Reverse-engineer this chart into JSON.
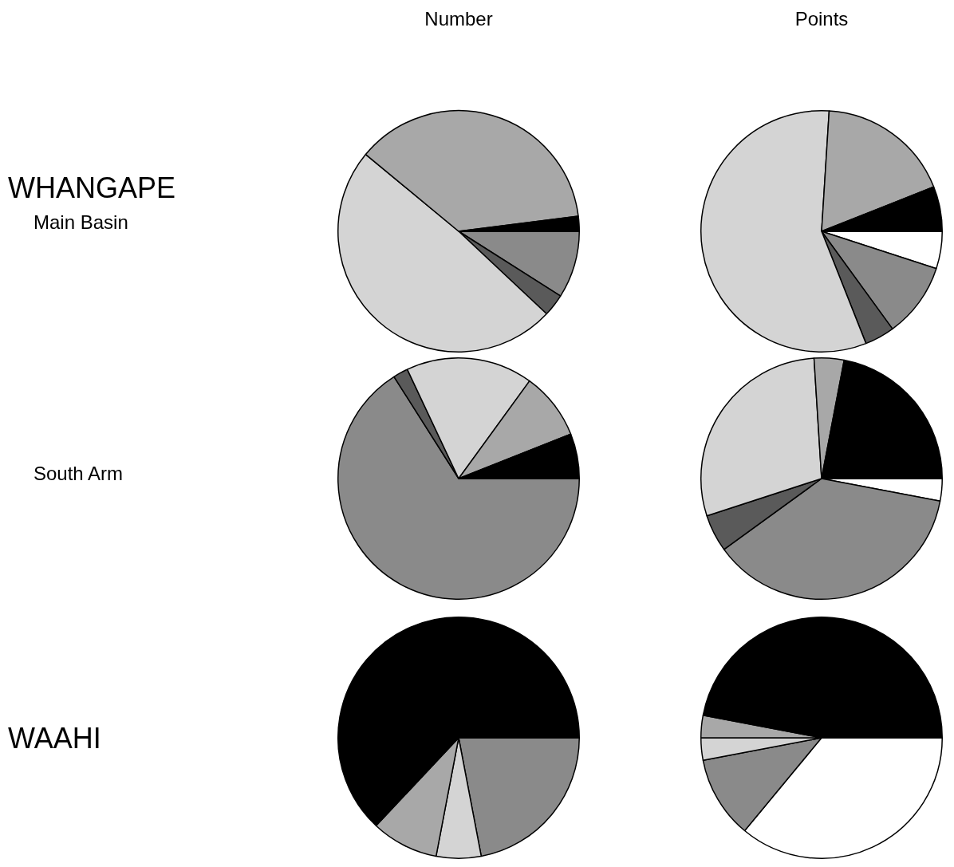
{
  "chart_data": [
    {
      "type": "pie",
      "title": "Number",
      "annotations": [
        "WHANGAPE",
        "Main Basin"
      ],
      "categories": [
        null,
        null,
        null,
        null,
        null
      ],
      "values": [
        9,
        3,
        49,
        37,
        2
      ],
      "colors": [
        "#8a8a8a",
        "#5a5a5a",
        "#d4d4d4",
        "#a8a8a8",
        "#000000"
      ]
    },
    {
      "type": "pie",
      "title": "Points",
      "categories": [
        null,
        null,
        null,
        null,
        null,
        null
      ],
      "values": [
        5,
        10,
        4,
        57,
        18,
        6
      ],
      "colors": [
        "#ffffff",
        "#8a8a8a",
        "#5a5a5a",
        "#d4d4d4",
        "#a8a8a8",
        "#000000"
      ]
    },
    {
      "type": "pie",
      "annotations": [
        "South Arm"
      ],
      "categories": [
        null,
        null,
        null,
        null,
        null
      ],
      "values": [
        66,
        2,
        17,
        9,
        6
      ],
      "colors": [
        "#8a8a8a",
        "#5a5a5a",
        "#d4d4d4",
        "#a8a8a8",
        "#000000"
      ]
    },
    {
      "type": "pie",
      "categories": [
        null,
        null,
        null,
        null,
        null,
        null
      ],
      "values": [
        3,
        37,
        5,
        29,
        4,
        22
      ],
      "colors": [
        "#ffffff",
        "#8a8a8a",
        "#5a5a5a",
        "#d4d4d4",
        "#a8a8a8",
        "#000000"
      ]
    },
    {
      "type": "pie",
      "annotations": [
        "WAAHI"
      ],
      "categories": [
        null,
        null,
        null,
        null
      ],
      "values": [
        22,
        6,
        9,
        63
      ],
      "colors": [
        "#8a8a8a",
        "#d4d4d4",
        "#a8a8a8",
        "#000000"
      ]
    },
    {
      "type": "pie",
      "categories": [
        null,
        null,
        null,
        null,
        null
      ],
      "values": [
        36,
        11,
        3,
        3,
        47
      ],
      "colors": [
        "#ffffff",
        "#8a8a8a",
        "#d4d4d4",
        "#a8a8a8",
        "#000000"
      ]
    }
  ]
}
